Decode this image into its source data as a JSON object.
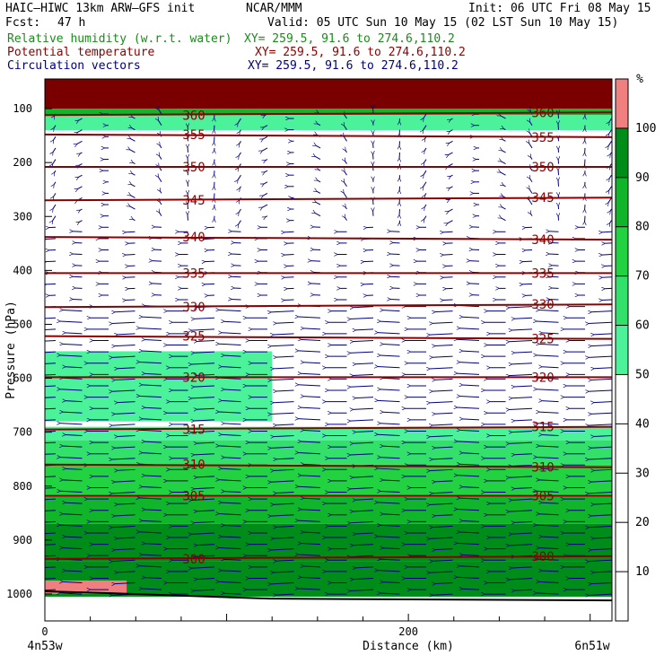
{
  "header": {
    "model": "HAIC–HIWC 13km ARW–GFS init",
    "org": "NCAR/MMM",
    "init": "Init: 06 UTC Fri 08 May 15",
    "fcst_label": "Fcst:",
    "fcst_value": "47 h",
    "valid": "Valid: 05 UTC Sun 10 May 15 (02 LST Sun 10 May 15)",
    "fields": [
      {
        "label": "Relative humidity (w.r.t. water)",
        "xy": "XY= 259.5, 91.6 to 274.6,110.2",
        "color": "#1a8c1a"
      },
      {
        "label": "Potential temperature",
        "xy": "XY= 259.5, 91.6 to 274.6,110.2",
        "color": "#8b0000"
      },
      {
        "label": "Circulation vectors",
        "xy": "XY= 259.5, 91.6 to 274.6,110.2",
        "color": "#000080"
      }
    ]
  },
  "chart_data": {
    "type": "heatmap",
    "xlabel": "Distance (km)",
    "ylabel": "Pressure (hPa)",
    "xlim": [
      0,
      312
    ],
    "ylim": [
      1050,
      45
    ],
    "x_ticks": [
      0,
      200
    ],
    "y_ticks": [
      100,
      200,
      300,
      400,
      500,
      600,
      700,
      800,
      900,
      1000
    ],
    "x_endpoint_labels": [
      "4n53w",
      "6n51w"
    ],
    "colorbar": {
      "unit": "%",
      "levels": [
        10,
        20,
        30,
        40,
        50,
        60,
        70,
        80,
        90,
        100
      ],
      "colors": [
        {
          "from": 50,
          "to": 60,
          "color": "#4cf29a"
        },
        {
          "from": 60,
          "to": 70,
          "color": "#33e06a"
        },
        {
          "from": 70,
          "to": 80,
          "color": "#22d240"
        },
        {
          "from": 80,
          "to": 90,
          "color": "#10b52a"
        },
        {
          "from": 90,
          "to": 100,
          "color": "#008c18"
        },
        {
          "from": 100,
          "to": 110,
          "color": "#f08080"
        }
      ]
    },
    "rh_layers": [
      {
        "p_top": 45,
        "p_bottom": 100,
        "value": 100
      },
      {
        "p_top": 100,
        "p_bottom": 112,
        "value": 85
      },
      {
        "p_top": 112,
        "p_bottom": 140,
        "value": 55
      },
      {
        "p_top": 550,
        "p_bottom": 680,
        "value": 55
      },
      {
        "p_top": 690,
        "p_bottom": 715,
        "value": 55
      },
      {
        "p_top": 715,
        "p_bottom": 760,
        "value": 65
      },
      {
        "p_top": 760,
        "p_bottom": 820,
        "value": 75
      },
      {
        "p_top": 820,
        "p_bottom": 870,
        "value": 85
      },
      {
        "p_top": 870,
        "p_bottom": 940,
        "value": 92
      },
      {
        "p_top": 940,
        "p_bottom": 1005,
        "value": 98
      },
      {
        "p_top": 975,
        "p_bottom": 1000,
        "value": 102
      }
    ],
    "theta_isolines": [
      {
        "value": 300,
        "p": 935
      },
      {
        "value": 305,
        "p": 818
      },
      {
        "value": 310,
        "p": 760
      },
      {
        "value": 315,
        "p": 695
      },
      {
        "value": 320,
        "p": 598
      },
      {
        "value": 325,
        "p": 522
      },
      {
        "value": 330,
        "p": 468
      },
      {
        "value": 335,
        "p": 405
      },
      {
        "value": 340,
        "p": 338
      },
      {
        "value": 345,
        "p": 270
      },
      {
        "value": 350,
        "p": 208
      },
      {
        "value": 355,
        "p": 148
      },
      {
        "value": 360,
        "p": 112
      }
    ],
    "vectors_description": "Circulation vectors: predominantly westward (easterly) flow below ~450 hPa, weak and variable aloft"
  },
  "colors": {
    "frame": "#000000",
    "theta": "#8b0000",
    "vector": "#000080",
    "rh_label": "#1a8c1a"
  }
}
